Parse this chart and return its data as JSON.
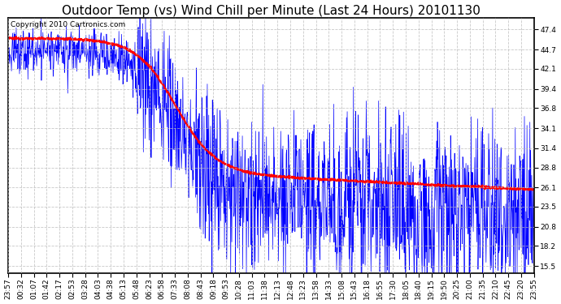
{
  "title": "Outdoor Temp (vs) Wind Chill per Minute (Last 24 Hours) 20101130",
  "copyright_text": "Copyright 2010 Cartronics.com",
  "yticks": [
    15.5,
    18.2,
    20.8,
    23.5,
    26.1,
    28.8,
    31.4,
    34.1,
    36.8,
    39.4,
    42.1,
    44.7,
    47.4
  ],
  "ylim": [
    14.5,
    49.0
  ],
  "background_color": "#ffffff",
  "plot_bg_color": "#ffffff",
  "grid_color": "#bbbbbb",
  "blue_color": "#0000ff",
  "red_color": "#ff0000",
  "title_fontsize": 11,
  "tick_fontsize": 6.5,
  "copyright_fontsize": 6.5,
  "xtick_labels": [
    "23:57",
    "00:32",
    "01:07",
    "01:42",
    "02:17",
    "02:53",
    "03:28",
    "04:03",
    "04:38",
    "05:13",
    "05:48",
    "06:23",
    "06:58",
    "07:33",
    "08:08",
    "08:43",
    "09:18",
    "09:53",
    "10:28",
    "11:03",
    "11:38",
    "12:13",
    "12:48",
    "13:23",
    "13:58",
    "14:33",
    "15:08",
    "15:43",
    "16:18",
    "16:55",
    "17:30",
    "18:05",
    "18:40",
    "19:15",
    "19:50",
    "20:25",
    "21:00",
    "21:35",
    "22:10",
    "22:45",
    "23:20",
    "23:55"
  ]
}
